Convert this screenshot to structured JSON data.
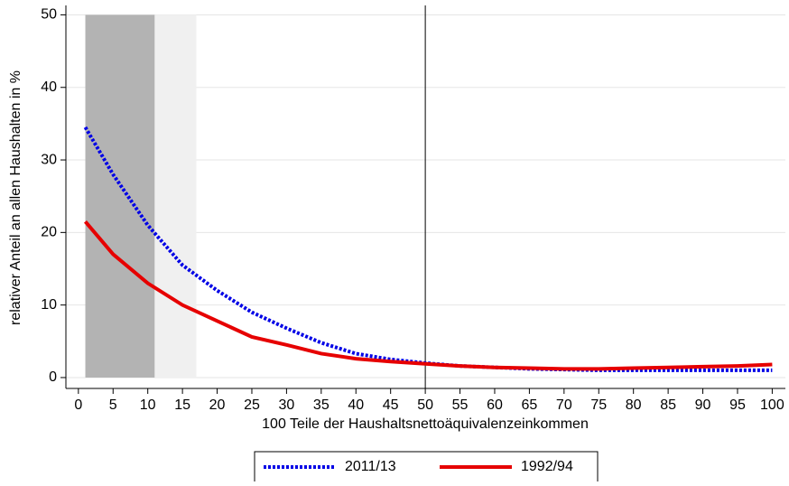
{
  "chart_data": {
    "type": "line",
    "xlabel": "100 Teile der Haushaltsnettoäquivalenzeinkommen",
    "ylabel": "relativer Anteil an allen Haushalten in %",
    "x": [
      1,
      5,
      10,
      15,
      20,
      25,
      30,
      35,
      40,
      45,
      50,
      55,
      60,
      65,
      70,
      75,
      80,
      85,
      90,
      95,
      100
    ],
    "series": [
      {
        "name": "2011/13",
        "color": "#0000e6",
        "dash": "dotted",
        "values": [
          34.5,
          28,
          21,
          15.5,
          12,
          9,
          6.8,
          4.8,
          3.3,
          2.5,
          2,
          1.6,
          1.4,
          1.2,
          1.1,
          1.0,
          1.0,
          1.0,
          1.0,
          1.0,
          1.0
        ]
      },
      {
        "name": "1992/94",
        "color": "#e60000",
        "dash": "solid",
        "values": [
          21.5,
          17,
          13,
          10,
          7.8,
          5.6,
          4.5,
          3.3,
          2.6,
          2.2,
          1.9,
          1.6,
          1.4,
          1.3,
          1.2,
          1.2,
          1.3,
          1.4,
          1.5,
          1.6,
          1.8
        ]
      }
    ],
    "bands": [
      {
        "from": 1,
        "to": 11,
        "color": "#b3b3b3"
      },
      {
        "from": 11,
        "to": 17,
        "color": "#f0f0f0"
      }
    ],
    "band_y": [
      0,
      50
    ],
    "vline": 50,
    "xlim": [
      -1.8,
      101.9
    ],
    "ylim": [
      -1.5,
      51.3
    ],
    "xticks": [
      0,
      5,
      10,
      15,
      20,
      25,
      30,
      35,
      40,
      45,
      50,
      55,
      60,
      65,
      70,
      75,
      80,
      85,
      90,
      95,
      100
    ],
    "yticks": [
      0,
      10,
      20,
      30,
      40,
      50
    ],
    "grid": true,
    "legend": "bottom"
  }
}
